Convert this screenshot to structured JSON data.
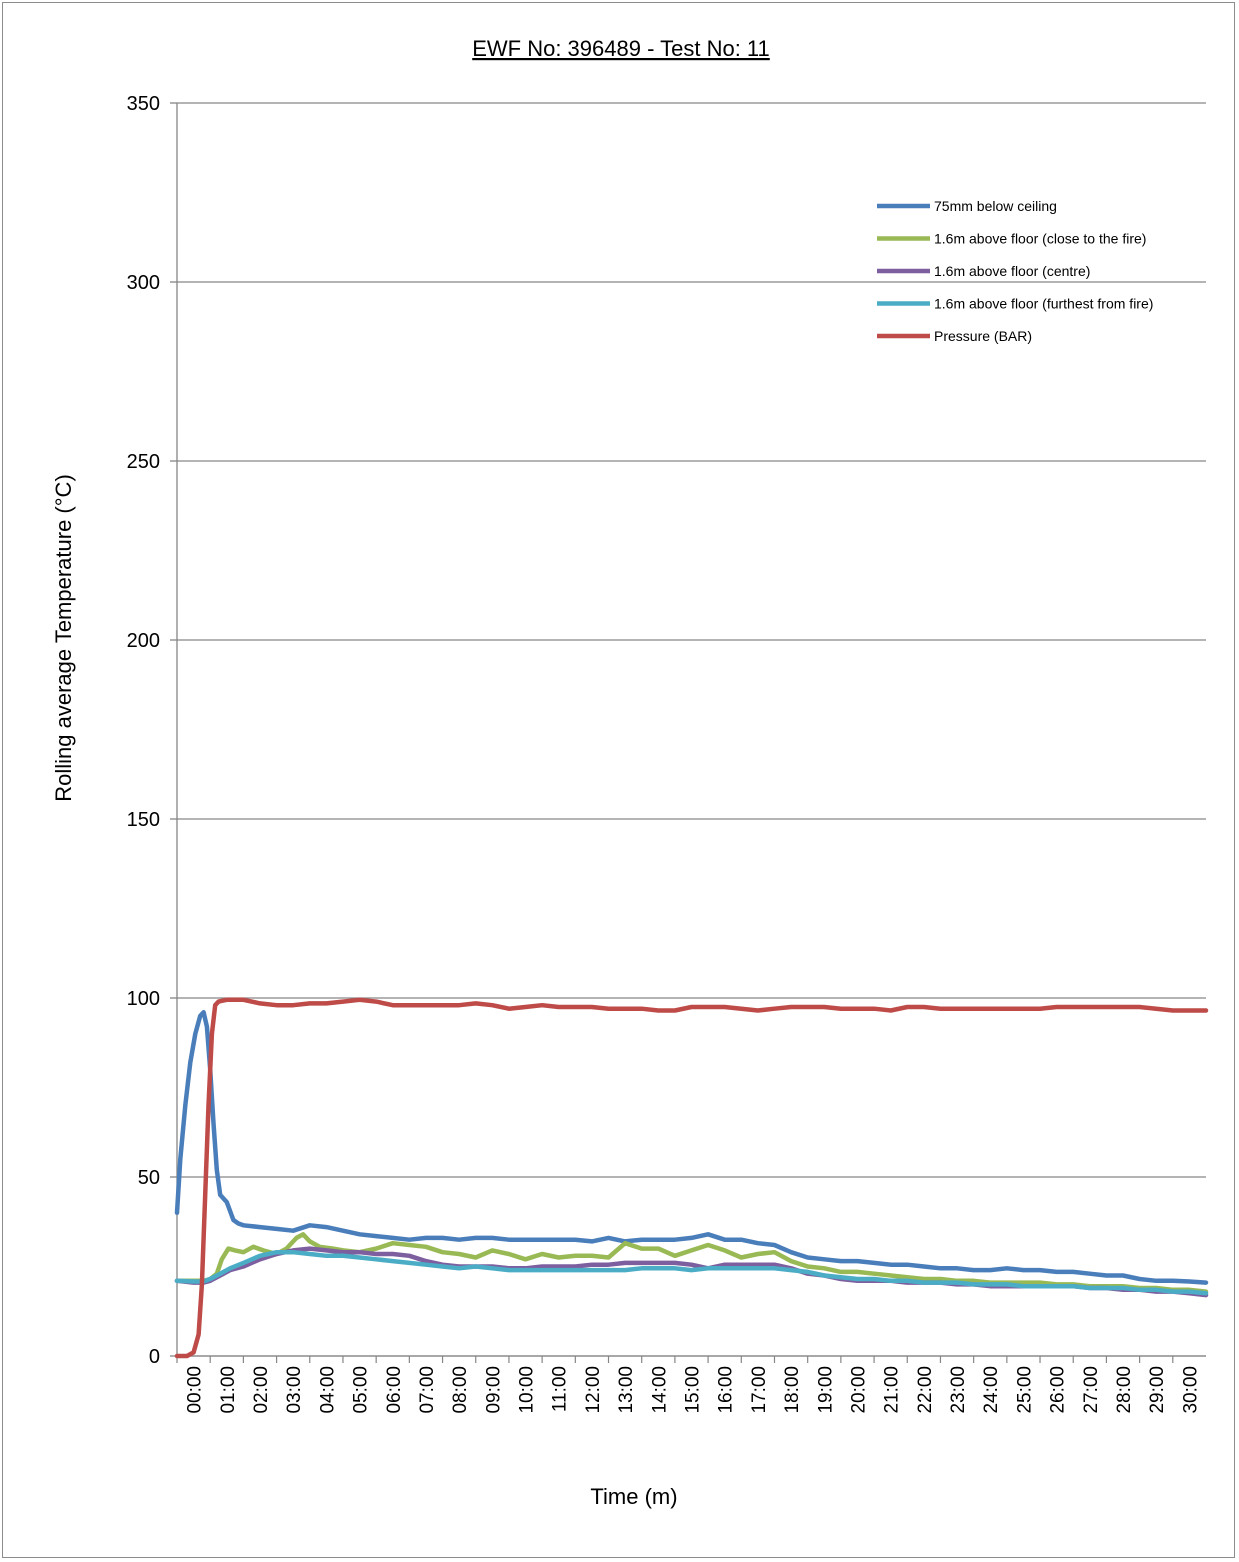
{
  "chart_data": {
    "type": "line",
    "title": "EWF No: 396489 - Test No: 11",
    "xlabel": "Time (m)",
    "ylabel": "Rolling average Temperature (°C)",
    "ylim": [
      0,
      350
    ],
    "yticks": [
      0,
      50,
      100,
      150,
      200,
      250,
      300,
      350
    ],
    "xlim": [
      0,
      31
    ],
    "xticks": [
      "00:00",
      "01:00",
      "02:00",
      "03:00",
      "04:00",
      "05:00",
      "06:00",
      "07:00",
      "08:00",
      "09:00",
      "10:00",
      "11:00",
      "12:00",
      "13:00",
      "14:00",
      "15:00",
      "16:00",
      "17:00",
      "18:00",
      "19:00",
      "20:00",
      "21:00",
      "22:00",
      "23:00",
      "24:00",
      "25:00",
      "26:00",
      "27:00",
      "28:00",
      "29:00",
      "30:00"
    ],
    "grid": "horizontal",
    "legend_position": "top-right",
    "series": [
      {
        "name": "75mm below ceiling",
        "color": "#4a7ebb",
        "x": [
          0,
          0.1,
          0.25,
          0.4,
          0.55,
          0.7,
          0.8,
          0.9,
          1.0,
          1.1,
          1.2,
          1.3,
          1.5,
          1.7,
          1.85,
          2.0,
          2.5,
          3.0,
          3.5,
          4.0,
          4.5,
          5.0,
          5.5,
          6.0,
          6.5,
          7.0,
          7.5,
          8.0,
          8.5,
          9.0,
          9.5,
          10.0,
          10.5,
          11.0,
          11.5,
          12.0,
          12.5,
          13.0,
          13.5,
          14.0,
          14.5,
          15.0,
          15.5,
          16.0,
          16.5,
          17.0,
          17.5,
          18.0,
          18.5,
          19.0,
          19.5,
          20.0,
          20.5,
          21.0,
          21.5,
          22.0,
          22.5,
          23.0,
          23.5,
          24.0,
          24.5,
          25.0,
          25.5,
          26.0,
          26.5,
          27.0,
          27.5,
          28.0,
          28.5,
          29.0,
          29.5,
          30.0,
          30.5,
          31.0
        ],
        "y": [
          40,
          55,
          70,
          82,
          90,
          95,
          96,
          92,
          80,
          65,
          52,
          45,
          43,
          38,
          37,
          36.5,
          36,
          35.5,
          35,
          36.5,
          36,
          35,
          34,
          33.5,
          33,
          32.5,
          33,
          33,
          32.5,
          33,
          33,
          32.5,
          32.5,
          32.5,
          32.5,
          32.5,
          32,
          33,
          32,
          32.5,
          32.5,
          32.5,
          33,
          34,
          32.5,
          32.5,
          31.5,
          31,
          29,
          27.5,
          27,
          26.5,
          26.5,
          26,
          25.5,
          25.5,
          25,
          24.5,
          24.5,
          24,
          24,
          24.5,
          24,
          24,
          23.5,
          23.5,
          23,
          22.5,
          22.5,
          21.5,
          21,
          21,
          20.8,
          20.5
        ]
      },
      {
        "name": "1.6m above floor (close to the fire)",
        "color": "#98b954",
        "x": [
          0,
          0.5,
          0.8,
          1.0,
          1.2,
          1.35,
          1.55,
          1.75,
          2.0,
          2.3,
          2.6,
          3.0,
          3.3,
          3.6,
          3.8,
          4.0,
          4.3,
          4.7,
          5.0,
          5.5,
          6.0,
          6.5,
          7.0,
          7.5,
          8.0,
          8.5,
          9.0,
          9.5,
          10.0,
          10.5,
          11.0,
          11.5,
          12.0,
          12.5,
          13.0,
          13.5,
          14.0,
          14.5,
          15.0,
          15.5,
          16.0,
          16.5,
          17.0,
          17.5,
          18.0,
          18.5,
          19.0,
          19.5,
          20.0,
          20.5,
          21.0,
          21.5,
          22.0,
          22.5,
          23.0,
          23.5,
          24.0,
          24.5,
          25.0,
          25.5,
          26.0,
          26.5,
          27.0,
          27.5,
          28.0,
          28.5,
          29.0,
          29.5,
          30.0,
          30.5,
          31.0
        ],
        "y": [
          21,
          21,
          21,
          21.5,
          23,
          27,
          30,
          29.5,
          29,
          30.5,
          29.5,
          28.5,
          30,
          33,
          34,
          32,
          30.5,
          30,
          29.5,
          29,
          30,
          31.5,
          31,
          30.5,
          29,
          28.5,
          27.5,
          29.5,
          28.5,
          27,
          28.5,
          27.5,
          28,
          28,
          27.5,
          31.5,
          30,
          30,
          28,
          29.5,
          31,
          29.5,
          27.5,
          28.5,
          29,
          26.5,
          25,
          24.5,
          23.5,
          23.5,
          23,
          22.5,
          22,
          21.5,
          21.5,
          21,
          21,
          20.5,
          20.5,
          20.5,
          20.5,
          20,
          20,
          19.5,
          19.5,
          19.5,
          19,
          19,
          18.5,
          18.5,
          18
        ]
      },
      {
        "name": "1.6m above floor (centre)",
        "color": "#7d5fa0",
        "x": [
          0,
          0.5,
          0.8,
          1.0,
          1.3,
          1.6,
          2.0,
          2.5,
          3.0,
          3.5,
          4.0,
          4.5,
          5.0,
          5.5,
          6.0,
          6.5,
          7.0,
          7.5,
          8.0,
          8.5,
          9.0,
          9.5,
          10.0,
          10.5,
          11.0,
          11.5,
          12.0,
          12.5,
          13.0,
          13.5,
          14.0,
          14.5,
          15.0,
          15.5,
          16.0,
          16.5,
          17.0,
          17.5,
          18.0,
          18.5,
          19.0,
          19.5,
          20.0,
          20.5,
          21.0,
          21.5,
          22.0,
          22.5,
          23.0,
          23.5,
          24.0,
          24.5,
          25.0,
          25.5,
          26.0,
          26.5,
          27.0,
          27.5,
          28.0,
          28.5,
          29.0,
          29.5,
          30.0,
          30.5,
          31.0
        ],
        "y": [
          21,
          20.5,
          20.5,
          21,
          22.5,
          24,
          25,
          27,
          28.5,
          29.5,
          30,
          29.5,
          29,
          29,
          28.5,
          28.5,
          28,
          26.5,
          25.5,
          25,
          25,
          25,
          24.5,
          24.5,
          25,
          25,
          25,
          25.5,
          25.5,
          26,
          26,
          26,
          26,
          25.5,
          24.5,
          25.5,
          25.5,
          25.5,
          25.5,
          24.5,
          23,
          22.5,
          21.5,
          21,
          21,
          21,
          20.5,
          20.5,
          20.5,
          20,
          20,
          19.5,
          19.5,
          19.5,
          19.5,
          19.5,
          19.5,
          19,
          19,
          18.5,
          18.5,
          18,
          18,
          17.5,
          17
        ]
      },
      {
        "name": "1.6m above floor (furthest from fire)",
        "color": "#4bacc6",
        "x": [
          0,
          0.5,
          0.8,
          1.0,
          1.3,
          1.6,
          2.0,
          2.5,
          3.0,
          3.5,
          4.0,
          4.5,
          5.0,
          5.5,
          6.0,
          6.5,
          7.0,
          7.5,
          8.0,
          8.5,
          9.0,
          9.5,
          10.0,
          10.5,
          11.0,
          11.5,
          12.0,
          12.5,
          13.0,
          13.5,
          14.0,
          14.5,
          15.0,
          15.5,
          16.0,
          16.5,
          17.0,
          17.5,
          18.0,
          18.5,
          19.0,
          19.5,
          20.0,
          20.5,
          21.0,
          21.5,
          22.0,
          22.5,
          23.0,
          23.5,
          24.0,
          24.5,
          25.0,
          25.5,
          26.0,
          26.5,
          27.0,
          27.5,
          28.0,
          28.5,
          29.0,
          29.5,
          30.0,
          30.5,
          31.0
        ],
        "y": [
          21,
          20.8,
          20.8,
          21.5,
          23,
          24.5,
          26,
          28,
          29,
          29,
          28.5,
          28,
          28,
          27.5,
          27,
          26.5,
          26,
          25.5,
          25,
          24.5,
          25,
          24.5,
          24,
          24,
          24,
          24,
          24,
          24,
          24,
          24,
          24.5,
          24.5,
          24.5,
          24,
          24.5,
          24.5,
          24.5,
          24.5,
          24.5,
          24,
          23.5,
          22.5,
          22,
          21.5,
          21.5,
          21,
          21,
          20.5,
          20.5,
          20.5,
          20,
          20,
          20,
          19.5,
          19.5,
          19.5,
          19.5,
          19,
          19,
          19,
          18.5,
          18.5,
          18,
          18,
          17.5
        ]
      },
      {
        "name": "Pressure (BAR)",
        "color": "#be4b48",
        "x": [
          0,
          0.3,
          0.5,
          0.65,
          0.75,
          0.85,
          0.95,
          1.05,
          1.15,
          1.25,
          1.5,
          2.0,
          2.5,
          3.0,
          3.5,
          4.0,
          4.5,
          5.0,
          5.5,
          6.0,
          6.5,
          7.0,
          7.5,
          8.0,
          8.5,
          9.0,
          9.5,
          10.0,
          10.5,
          11.0,
          11.5,
          12.0,
          12.5,
          13.0,
          13.5,
          14.0,
          14.5,
          15.0,
          15.5,
          16.0,
          16.5,
          17.0,
          17.5,
          18.0,
          18.5,
          19.0,
          19.5,
          20.0,
          20.5,
          21.0,
          21.5,
          22.0,
          22.5,
          23.0,
          23.5,
          24.0,
          24.5,
          25.0,
          25.5,
          26.0,
          26.5,
          27.0,
          27.5,
          28.0,
          28.5,
          29.0,
          29.5,
          30.0,
          30.5,
          31.0
        ],
        "y": [
          0,
          0,
          1,
          6,
          20,
          45,
          70,
          90,
          98,
          99,
          99.5,
          99.5,
          98.5,
          98,
          98,
          98.5,
          98.5,
          99,
          99.5,
          99,
          98,
          98,
          98,
          98,
          98,
          98.5,
          98,
          97,
          97.5,
          98,
          97.5,
          97.5,
          97.5,
          97,
          97,
          97,
          96.5,
          96.5,
          97.5,
          97.5,
          97.5,
          97,
          96.5,
          97,
          97.5,
          97.5,
          97.5,
          97,
          97,
          97,
          96.5,
          97.5,
          97.5,
          97,
          97,
          97,
          97,
          97,
          97,
          97,
          97.5,
          97.5,
          97.5,
          97.5,
          97.5,
          97.5,
          97,
          96.5,
          96.5,
          96.5
        ]
      }
    ]
  }
}
